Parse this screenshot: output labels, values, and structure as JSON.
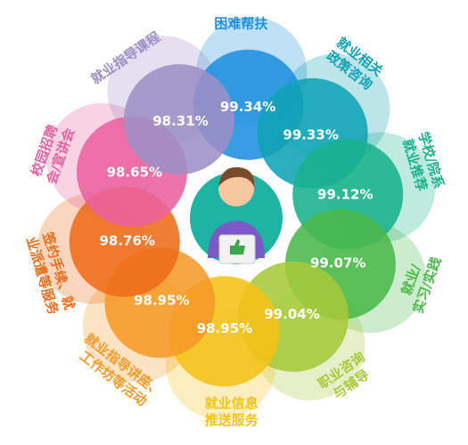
{
  "chart_data": {
    "type": "flower",
    "categories": [
      [
        "困难帮扶"
      ],
      [
        "就业相关",
        "政策咨询"
      ],
      [
        "学校/院系",
        "就业推荐"
      ],
      [
        "就业/",
        "实习/实践"
      ],
      [
        "职业咨询",
        "与辅导"
      ],
      [
        "就业信息",
        "推送服务"
      ],
      [
        "就业指导讲座、",
        "工作坊等活动"
      ],
      [
        "签约手续、就",
        "业派遣等服务"
      ],
      [
        "校园招聘",
        "会/宣讲会"
      ],
      [
        "就业指导课程"
      ]
    ],
    "values": [
      99.34,
      99.33,
      99.12,
      99.07,
      99.04,
      98.95,
      98.95,
      98.76,
      98.65,
      98.31
    ],
    "value_labels": [
      "99.34%",
      "99.33%",
      "99.12%",
      "99.07%",
      "99.04%",
      "98.95%",
      "98.95%",
      "98.76%",
      "98.65%",
      "98.31%"
    ],
    "colors": [
      "#1e90e0",
      "#0fa3b5",
      "#19b28c",
      "#4bb84a",
      "#a6c93a",
      "#f5c216",
      "#f59a28",
      "#ee6c19",
      "#e9619f",
      "#9d90c6"
    ]
  }
}
